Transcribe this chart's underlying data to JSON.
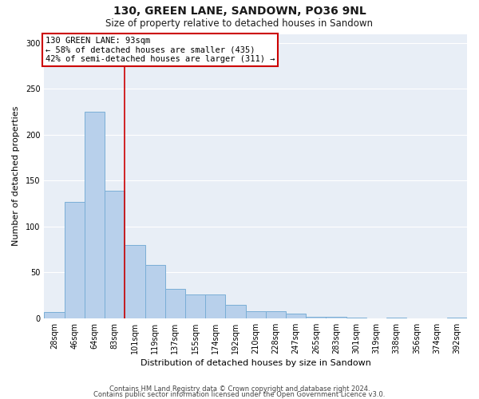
{
  "title": "130, GREEN LANE, SANDOWN, PO36 9NL",
  "subtitle": "Size of property relative to detached houses in Sandown",
  "xlabel": "Distribution of detached houses by size in Sandown",
  "ylabel": "Number of detached properties",
  "bar_color": "#b8d0eb",
  "bar_edge_color": "#7aaed6",
  "background_color": "#e8eef6",
  "categories": [
    "28sqm",
    "46sqm",
    "64sqm",
    "83sqm",
    "101sqm",
    "119sqm",
    "137sqm",
    "155sqm",
    "174sqm",
    "192sqm",
    "210sqm",
    "228sqm",
    "247sqm",
    "265sqm",
    "283sqm",
    "301sqm",
    "319sqm",
    "338sqm",
    "356sqm",
    "374sqm",
    "392sqm"
  ],
  "values": [
    7,
    127,
    225,
    139,
    80,
    58,
    32,
    26,
    26,
    15,
    8,
    8,
    5,
    2,
    2,
    1,
    0,
    1,
    0,
    0,
    1
  ],
  "ylim": [
    0,
    310
  ],
  "yticks": [
    0,
    50,
    100,
    150,
    200,
    250,
    300
  ],
  "annotation_title": "130 GREEN LANE: 93sqm",
  "annotation_line1": "← 58% of detached houses are smaller (435)",
  "annotation_line2": "42% of semi-detached houses are larger (311) →",
  "annotation_box_facecolor": "#ffffff",
  "annotation_box_edgecolor": "#cc0000",
  "redline_x": 4,
  "footer_line1": "Contains HM Land Registry data © Crown copyright and database right 2024.",
  "footer_line2": "Contains public sector information licensed under the Open Government Licence v3.0.",
  "grid_color": "#ffffff",
  "title_fontsize": 10,
  "subtitle_fontsize": 8.5,
  "axis_label_fontsize": 8,
  "tick_fontsize": 7,
  "footer_fontsize": 6
}
